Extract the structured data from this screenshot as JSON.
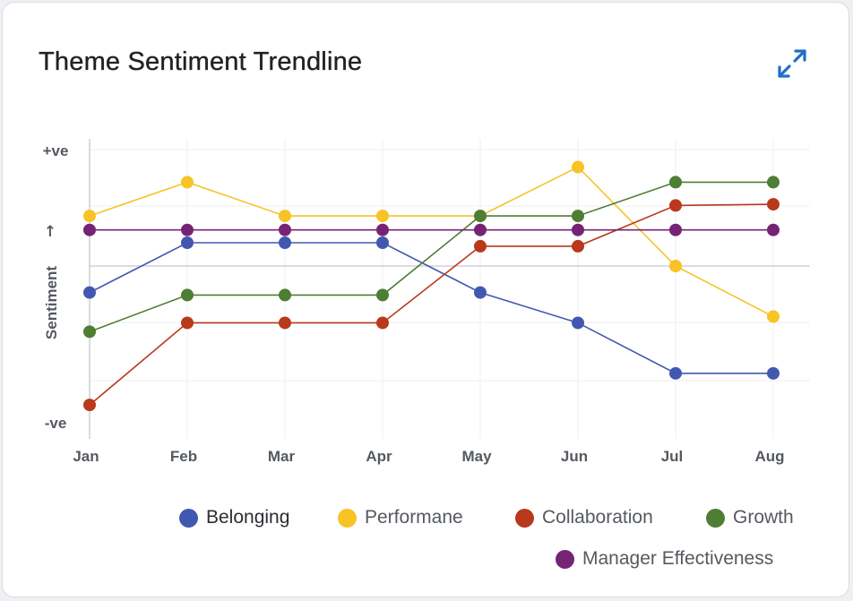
{
  "card": {
    "title": "Theme Sentiment Trendline",
    "expand_icon": "expand-arrows-icon",
    "accent": "#1f6fc5"
  },
  "chart_data": {
    "type": "line",
    "title": "Theme Sentiment Trendline",
    "xlabel": "",
    "ylabel": "Sentiment",
    "ylabel_arrow": "↑",
    "y_tick_labels": {
      "top": "+ve",
      "bottom": "-ve"
    },
    "categories": [
      "Jan",
      "Feb",
      "Mar",
      "Apr",
      "May",
      "Jun",
      "Jul",
      "Aug"
    ],
    "ylim": [
      -1,
      1
    ],
    "grid": true,
    "legend_position": "bottom-right",
    "series": [
      {
        "name": "Belonging",
        "color": "#4258b0",
        "values": [
          -0.21,
          0.2,
          0.2,
          0.2,
          -0.21,
          -0.45,
          -0.85,
          -0.85
        ]
      },
      {
        "name": "Performane",
        "color": "#f7c325",
        "values": [
          0.43,
          0.72,
          0.43,
          0.43,
          0.43,
          0.85,
          0.0,
          -0.4
        ]
      },
      {
        "name": "Collaboration",
        "color": "#b8391b",
        "values": [
          -1.1,
          -0.45,
          -0.45,
          -0.45,
          0.17,
          0.17,
          0.52,
          0.53
        ]
      },
      {
        "name": "Growth",
        "color": "#4e7d34",
        "values": [
          -0.52,
          -0.23,
          -0.23,
          -0.23,
          0.43,
          0.43,
          0.72,
          0.72
        ]
      },
      {
        "name": "Manager Effectiveness",
        "color": "#772375",
        "values": [
          0.31,
          0.31,
          0.31,
          0.31,
          0.31,
          0.31,
          0.31,
          0.31
        ]
      }
    ]
  }
}
